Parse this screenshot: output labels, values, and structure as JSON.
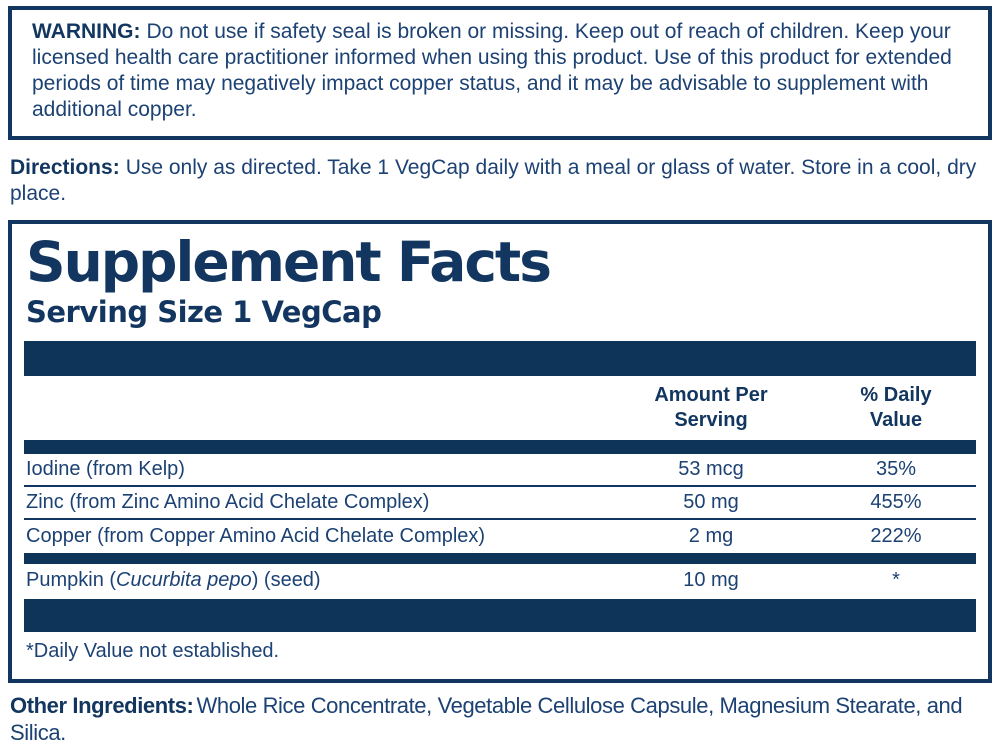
{
  "colors": {
    "navy_bar": "#0e3459",
    "navy_border": "#12365f",
    "body_text": "#1c4173"
  },
  "warning": {
    "label": "WARNING:",
    "text": "Do not use if safety seal is broken or missing. Keep out of reach of children. Keep your licensed health care practitioner informed when using this product. Use of this product for extended periods of time may negatively impact copper status, and it may be advisable to supplement with additional copper."
  },
  "directions": {
    "label": "Directions:",
    "text": "Use only as directed. Take 1 VegCap daily with a meal or glass of water. Store in a cool, dry place."
  },
  "supplement_facts": {
    "title": "Supplement Facts",
    "serving_size": "Serving Size 1 VegCap",
    "columns": {
      "amount": "Amount Per Serving",
      "dv": "% Daily Value"
    },
    "rows": [
      {
        "name": "Iodine (from Kelp)",
        "amount": "53 mcg",
        "dv": "35%"
      },
      {
        "name": "Zinc (from Zinc Amino Acid Chelate Complex)",
        "amount": "50 mg",
        "dv": "455%"
      },
      {
        "name": "Copper (from Copper Amino Acid Chelate Complex)",
        "amount": "2 mg",
        "dv": "222%"
      },
      {
        "name_prefix": "Pumpkin (",
        "name_italic": "Cucurbita pepo",
        "name_suffix": ") (seed)",
        "amount": "10 mg",
        "dv": "*"
      }
    ],
    "footnote": "*Daily Value not established."
  },
  "other_ingredients": {
    "label": "Other Ingredients:",
    "text": "Whole Rice Concentrate, Vegetable Cellulose Capsule, Magnesium Stearate, and Silica."
  }
}
